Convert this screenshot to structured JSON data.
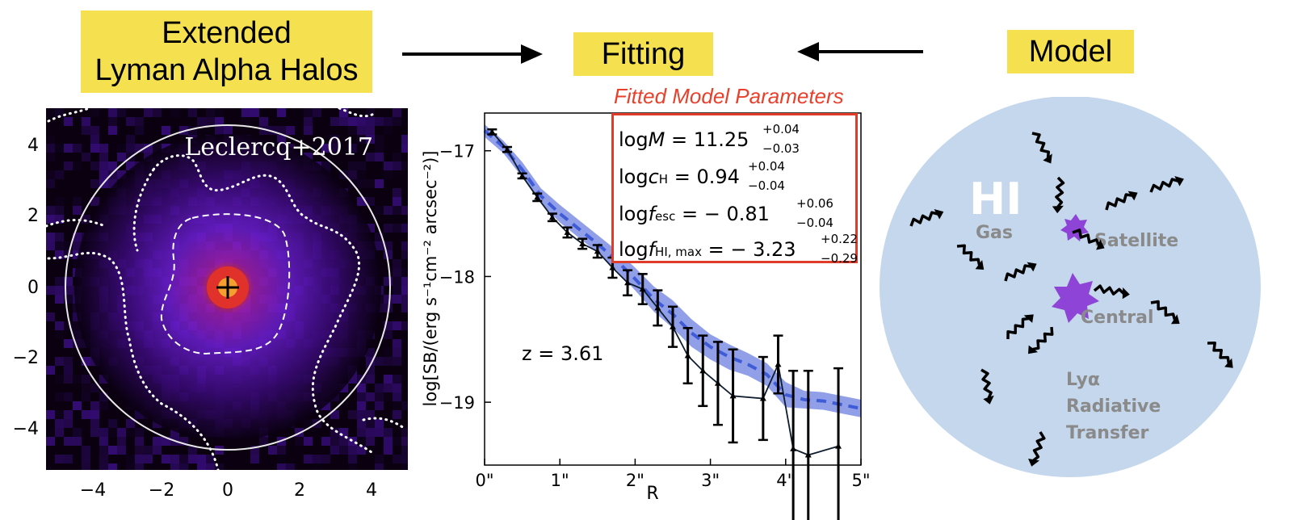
{
  "header": {
    "halos_label_line1": "Extended",
    "halos_label_line2": "Lyman Alpha Halos",
    "fitting_label": "Fitting",
    "model_label": "Model"
  },
  "image_panel": {
    "citation": "Leclercq+2017",
    "x_ticks": [
      "−4",
      "−2",
      "0",
      "2",
      "4"
    ],
    "y_ticks": [
      "4",
      "2",
      "0",
      "−2",
      "−4"
    ]
  },
  "fit_panel": {
    "box_title": "Fitted Model Parameters",
    "params": [
      {
        "name": "logM",
        "value": "= 11.25",
        "sup": "+0.04",
        "sub": "−0.03"
      },
      {
        "name": "logc_H",
        "value": "= 0.94",
        "sup": "+0.04",
        "sub": "−0.04"
      },
      {
        "name": "logf_esc",
        "value": "= − 0.81",
        "sup": "+0.06",
        "sub": "−0.04"
      },
      {
        "name": "logf_HI,max",
        "value": "= − 3.23",
        "sup": "+0.22",
        "sub": "−0.29"
      }
    ],
    "redshift_label": "z = 3.61"
  },
  "chart_data": {
    "type": "line",
    "xlabel": "R",
    "ylabel": "log[SB/(erg s⁻¹cm⁻² arcsec⁻²)]",
    "xlim": [
      0,
      5
    ],
    "ylim": [
      -19.5,
      -16.7
    ],
    "x_tick_labels": [
      "0\"",
      "1\"",
      "2\"",
      "3\"",
      "4\"",
      "5\""
    ],
    "y_tick_labels": [
      "−17",
      "−18",
      "−19"
    ],
    "y_ticks": [
      -17,
      -18,
      -19
    ],
    "x_ticks": [
      0,
      1,
      2,
      3,
      4,
      5
    ],
    "series": [
      {
        "type": "errorbar",
        "x": [
          0.1,
          0.3,
          0.5,
          0.7,
          0.9,
          1.1,
          1.3,
          1.5,
          1.7,
          1.9,
          2.1,
          2.3,
          2.5,
          2.7,
          2.9,
          3.1,
          3.3,
          3.7,
          3.9,
          4.1,
          4.3,
          4.7
        ],
        "y": [
          -16.85,
          -16.99,
          -17.2,
          -17.37,
          -17.53,
          -17.65,
          -17.74,
          -17.8,
          -17.93,
          -18.05,
          -18.1,
          -18.25,
          -18.4,
          -18.63,
          -18.75,
          -18.85,
          -18.95,
          -18.97,
          -18.7,
          -19.37,
          -19.42,
          -19.35
        ],
        "err": [
          0.02,
          0.02,
          0.02,
          0.03,
          0.03,
          0.04,
          0.04,
          0.05,
          0.08,
          0.1,
          0.12,
          0.14,
          0.16,
          0.22,
          0.28,
          0.33,
          0.37,
          0.33,
          0.23,
          0.62,
          0.67,
          0.62
        ]
      },
      {
        "type": "model",
        "x": [
          0,
          0.25,
          0.5,
          0.75,
          1.0,
          1.25,
          1.5,
          1.75,
          2.0,
          2.25,
          2.5,
          2.75,
          3.0,
          3.25,
          3.5,
          3.75,
          4.0,
          4.25,
          4.5,
          4.75,
          5.0
        ],
        "y": [
          -16.84,
          -16.97,
          -17.15,
          -17.36,
          -17.5,
          -17.62,
          -17.74,
          -17.87,
          -18.02,
          -18.18,
          -18.3,
          -18.45,
          -18.56,
          -18.64,
          -18.7,
          -18.78,
          -18.94,
          -18.98,
          -18.99,
          -19.02,
          -19.05
        ],
        "band_half_width": [
          0.05,
          0.05,
          0.06,
          0.06,
          0.07,
          0.07,
          0.07,
          0.08,
          0.09,
          0.1,
          0.11,
          0.11,
          0.1,
          0.1,
          0.09,
          0.09,
          0.1,
          0.07,
          0.07,
          0.07,
          0.07
        ]
      }
    ]
  },
  "model_panel": {
    "hi_label": "HI",
    "gas_label": "Gas",
    "satellite_label": "Satellite",
    "central_label": "Central",
    "lya_line1": "Lyα",
    "lya_line2": "Radiative",
    "lya_line3": "Transfer"
  },
  "colors": {
    "label_yellow": "#f5e04f",
    "fitted_red": "#e8402b",
    "band_blue": "#6b7fe0",
    "model_circle": "#c4d7ec",
    "star_purple": "#8e44d6"
  }
}
